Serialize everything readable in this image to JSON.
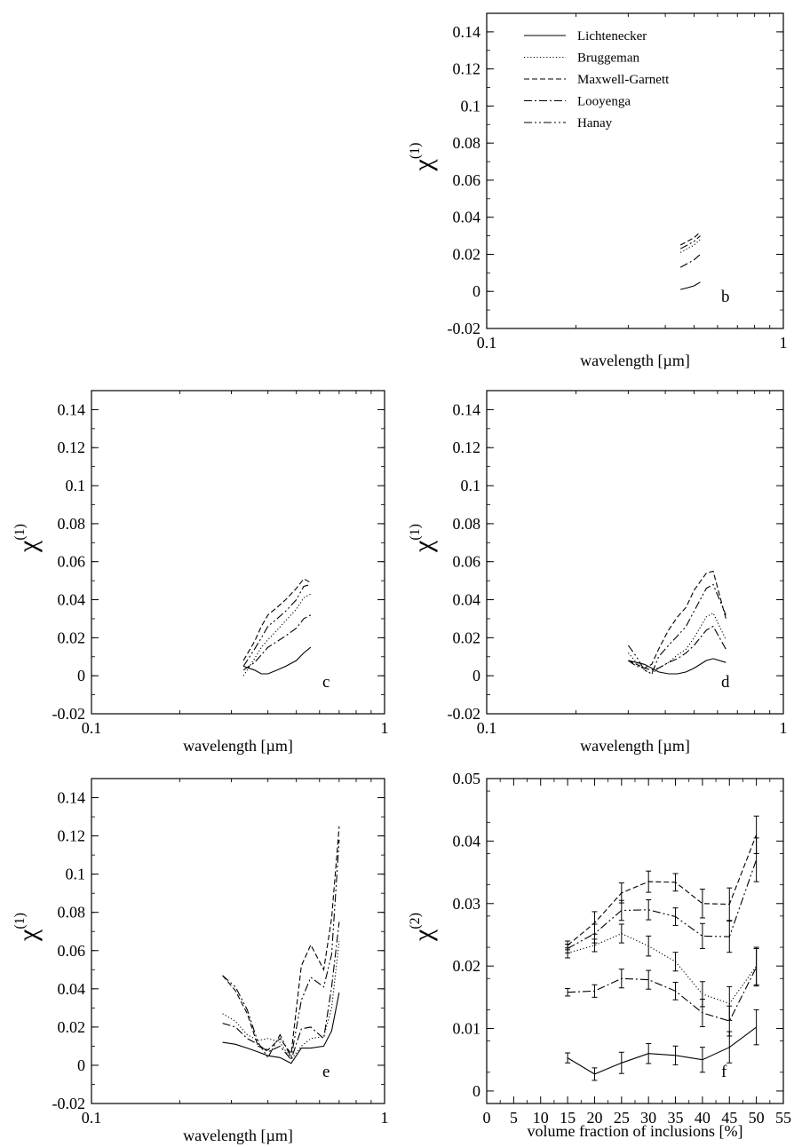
{
  "legend": [
    "Lichtenecker",
    "Bruggeman",
    "Maxwell-Garnett",
    "Looyenga",
    "Hanay"
  ],
  "dash_styles": {
    "Lichtenecker": "",
    "Bruggeman": "1.2,2.4",
    "Maxwell-Garnett": "6,3",
    "Looyenga": "9,3,2,3",
    "Hanay": "9,3,2,3,2,3"
  },
  "chart_data": [
    {
      "id": "b",
      "type": "line",
      "label": "b",
      "xscale": "log",
      "xlim": [
        0.1,
        1
      ],
      "ylim": [
        -0.02,
        0.15
      ],
      "xlabel": "wavelength  [µm]",
      "ylabel": "χ",
      "ylabel_sup": "(1)",
      "xticks": [
        "0.1",
        "1"
      ],
      "yticks": [
        "-0.02",
        "0",
        "0.02",
        "0.04",
        "0.06",
        "0.08",
        "0.1",
        "0.12",
        "0.14"
      ],
      "legend_position": "top-left",
      "x": [
        0.45,
        0.475,
        0.5,
        0.525
      ],
      "series": [
        {
          "name": "Lichtenecker",
          "values": [
            0.001,
            0.002,
            0.003,
            0.005
          ]
        },
        {
          "name": "Bruggeman",
          "values": [
            0.021,
            0.023,
            0.025,
            0.028
          ]
        },
        {
          "name": "Maxwell-Garnett",
          "values": [
            0.025,
            0.027,
            0.029,
            0.032
          ]
        },
        {
          "name": "Looyenga",
          "values": [
            0.013,
            0.015,
            0.017,
            0.02
          ]
        },
        {
          "name": "Hanay",
          "values": [
            0.023,
            0.025,
            0.027,
            0.03
          ]
        }
      ]
    },
    {
      "id": "c",
      "type": "line",
      "label": "c",
      "xscale": "log",
      "xlim": [
        0.1,
        1
      ],
      "ylim": [
        -0.02,
        0.15
      ],
      "xlabel": "wavelength  [µm]",
      "ylabel": "χ",
      "ylabel_sup": "(1)",
      "xticks": [
        "0.1",
        "1"
      ],
      "yticks": [
        "-0.02",
        "0",
        "0.02",
        "0.04",
        "0.06",
        "0.08",
        "0.1",
        "0.12",
        "0.14"
      ],
      "x": [
        0.33,
        0.36,
        0.38,
        0.4,
        0.43,
        0.46,
        0.5,
        0.53,
        0.56
      ],
      "series": [
        {
          "name": "Lichtenecker",
          "values": [
            0.005,
            0.003,
            0.001,
            0.001,
            0.003,
            0.005,
            0.008,
            0.012,
            0.015
          ]
        },
        {
          "name": "Bruggeman",
          "values": [
            0.0,
            0.009,
            0.015,
            0.019,
            0.024,
            0.029,
            0.035,
            0.041,
            0.043
          ]
        },
        {
          "name": "Maxwell-Garnett",
          "values": [
            0.008,
            0.018,
            0.026,
            0.032,
            0.036,
            0.04,
            0.046,
            0.051,
            0.049
          ]
        },
        {
          "name": "Looyenga",
          "values": [
            0.003,
            0.007,
            0.011,
            0.015,
            0.018,
            0.021,
            0.025,
            0.03,
            0.032
          ]
        },
        {
          "name": "Hanay",
          "values": [
            0.005,
            0.014,
            0.02,
            0.026,
            0.03,
            0.034,
            0.04,
            0.047,
            0.048
          ]
        }
      ]
    },
    {
      "id": "d",
      "type": "line",
      "label": "d",
      "xscale": "log",
      "xlim": [
        0.1,
        1
      ],
      "ylim": [
        -0.02,
        0.15
      ],
      "xlabel": "wavelength  [µm]",
      "ylabel": "χ",
      "ylabel_sup": "(1)",
      "xticks": [
        "0.1",
        "1"
      ],
      "yticks": [
        "-0.02",
        "0",
        "0.02",
        "0.04",
        "0.06",
        "0.08",
        "0.1",
        "0.12",
        "0.14"
      ],
      "x": [
        0.3,
        0.32,
        0.34,
        0.36,
        0.38,
        0.41,
        0.44,
        0.47,
        0.5,
        0.55,
        0.58,
        0.64
      ],
      "series": [
        {
          "name": "Lichtenecker",
          "values": [
            0.008,
            0.007,
            0.006,
            0.004,
            0.002,
            0.001,
            0.001,
            0.002,
            0.004,
            0.008,
            0.009,
            0.007
          ]
        },
        {
          "name": "Bruggeman",
          "values": [
            0.012,
            0.007,
            0.003,
            0.001,
            0.004,
            0.007,
            0.011,
            0.014,
            0.02,
            0.031,
            0.033,
            0.019
          ]
        },
        {
          "name": "Maxwell-Garnett",
          "values": [
            0.008,
            0.006,
            0.004,
            0.006,
            0.014,
            0.024,
            0.031,
            0.036,
            0.045,
            0.054,
            0.055,
            0.03
          ]
        },
        {
          "name": "Looyenga",
          "values": [
            0.008,
            0.005,
            0.004,
            0.003,
            0.004,
            0.007,
            0.009,
            0.012,
            0.016,
            0.024,
            0.026,
            0.014
          ]
        },
        {
          "name": "Hanay",
          "values": [
            0.016,
            0.01,
            0.003,
            0.001,
            0.01,
            0.016,
            0.021,
            0.026,
            0.034,
            0.046,
            0.048,
            0.032
          ]
        }
      ]
    },
    {
      "id": "e",
      "type": "line",
      "label": "e",
      "xscale": "log",
      "xlim": [
        0.1,
        1
      ],
      "ylim": [
        -0.02,
        0.15
      ],
      "xlabel": "wavelength  [µm]",
      "ylabel": "χ",
      "ylabel_sup": "(1)",
      "xticks": [
        "0.1",
        "1"
      ],
      "yticks": [
        "-0.02",
        "0",
        "0.02",
        "0.04",
        "0.06",
        "0.08",
        "0.1",
        "0.12",
        "0.14"
      ],
      "x": [
        0.28,
        0.31,
        0.34,
        0.37,
        0.4,
        0.44,
        0.48,
        0.52,
        0.56,
        0.62,
        0.66,
        0.7
      ],
      "series": [
        {
          "name": "Lichtenecker",
          "values": [
            0.012,
            0.011,
            0.009,
            0.007,
            0.005,
            0.004,
            0.001,
            0.009,
            0.009,
            0.01,
            0.018,
            0.038
          ]
        },
        {
          "name": "Bruggeman",
          "values": [
            0.027,
            0.023,
            0.016,
            0.013,
            0.014,
            0.012,
            0.003,
            0.01,
            0.014,
            0.015,
            0.03,
            0.065
          ]
        },
        {
          "name": "Maxwell-Garnett",
          "values": [
            0.047,
            0.039,
            0.027,
            0.01,
            0.008,
            0.014,
            0.006,
            0.052,
            0.063,
            0.05,
            0.077,
            0.125
          ]
        },
        {
          "name": "Looyenga",
          "values": [
            0.022,
            0.02,
            0.014,
            0.011,
            0.007,
            0.01,
            0.003,
            0.019,
            0.02,
            0.014,
            0.041,
            0.075
          ]
        },
        {
          "name": "Hanay",
          "values": [
            0.047,
            0.041,
            0.029,
            0.012,
            0.004,
            0.016,
            0.004,
            0.034,
            0.046,
            0.041,
            0.058,
            0.118
          ]
        }
      ]
    },
    {
      "id": "f",
      "type": "line",
      "label": "f",
      "xscale": "linear",
      "xlim": [
        0,
        55
      ],
      "ylim": [
        -0.002,
        0.05
      ],
      "xlabel": "volume fraction of inclusions [%]",
      "ylabel": "χ",
      "ylabel_sup": "(2)",
      "xticks": [
        "0",
        "5",
        "10",
        "15",
        "20",
        "25",
        "30",
        "35",
        "40",
        "45",
        "50",
        "55"
      ],
      "yticks": [
        "0",
        "0.01",
        "0.02",
        "0.03",
        "0.04",
        "0.05"
      ],
      "x": [
        15,
        20,
        25,
        30,
        35,
        40,
        45,
        50
      ],
      "error_bars": true,
      "series": [
        {
          "name": "Lichtenecker",
          "values": [
            0.0053,
            0.0027,
            0.0045,
            0.006,
            0.0057,
            0.005,
            0.007,
            0.0102
          ],
          "errors": [
            0.0008,
            0.001,
            0.0017,
            0.0016,
            0.0015,
            0.002,
            0.0025,
            0.0028
          ]
        },
        {
          "name": "Bruggeman",
          "values": [
            0.0221,
            0.0233,
            0.0252,
            0.0232,
            0.0207,
            0.0155,
            0.014,
            0.02
          ],
          "errors": [
            0.0008,
            0.001,
            0.0015,
            0.0016,
            0.0015,
            0.002,
            0.0027,
            0.003
          ]
        },
        {
          "name": "Maxwell-Garnett",
          "values": [
            0.0233,
            0.0269,
            0.0317,
            0.0335,
            0.0334,
            0.03,
            0.0299,
            0.041
          ],
          "errors": [
            0.0007,
            0.0018,
            0.0016,
            0.0017,
            0.0014,
            0.0023,
            0.0026,
            0.003
          ]
        },
        {
          "name": "Looyenga",
          "values": [
            0.0158,
            0.016,
            0.018,
            0.0178,
            0.016,
            0.0125,
            0.0112,
            0.0198
          ],
          "errors": [
            0.0006,
            0.001,
            0.0015,
            0.0015,
            0.0014,
            0.0022,
            0.0024,
            0.003
          ]
        },
        {
          "name": "Hanay",
          "values": [
            0.0228,
            0.0252,
            0.0289,
            0.029,
            0.0279,
            0.0248,
            0.0247,
            0.037
          ],
          "errors": [
            0.0007,
            0.0015,
            0.0016,
            0.0016,
            0.0014,
            0.002,
            0.0025,
            0.0035
          ]
        }
      ]
    }
  ]
}
